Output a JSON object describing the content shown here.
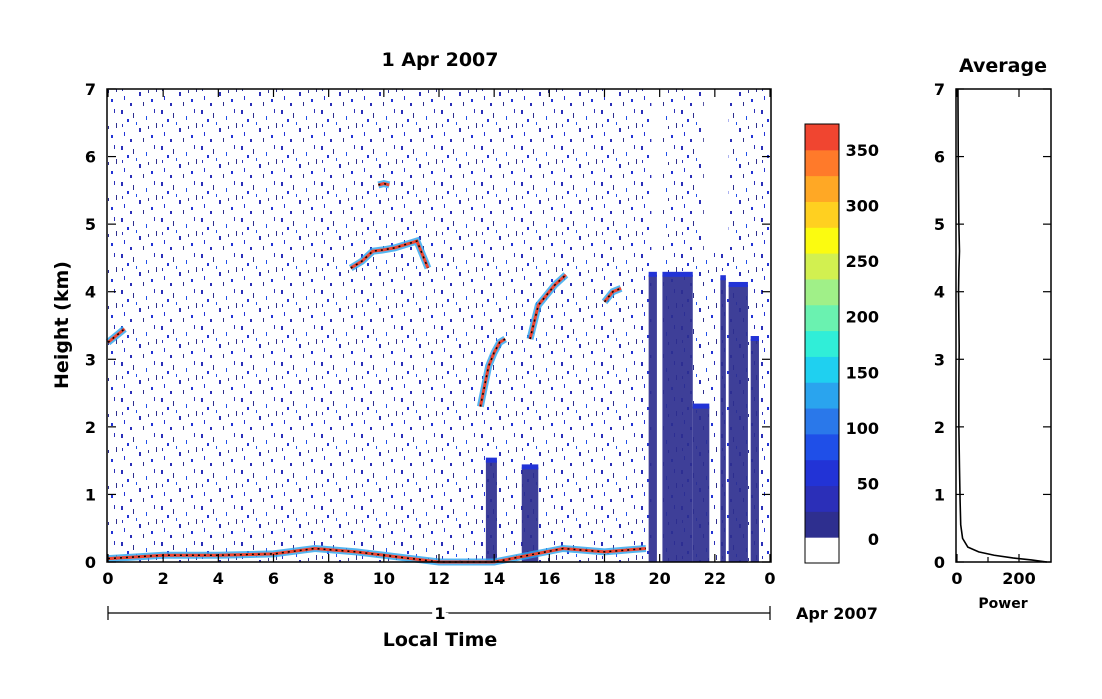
{
  "chart_data": [
    {
      "type": "heatmap",
      "title": "1 Apr 2007",
      "xlabel": "Local Time",
      "ylabel": "Height (km)",
      "xlim": [
        0,
        24
      ],
      "ylim": [
        0,
        7
      ],
      "x_ticks": [
        "0",
        "2",
        "4",
        "6",
        "8",
        "10",
        "12",
        "14",
        "16",
        "18",
        "20",
        "22",
        "0"
      ],
      "y_ticks": [
        "0",
        "1",
        "2",
        "3",
        "4",
        "5",
        "6",
        "7"
      ],
      "date_axis": {
        "day_label": "1",
        "month_label": "Apr 2007"
      },
      "colorbar": {
        "ticks": [
          "0",
          "50",
          "100",
          "150",
          "200",
          "250",
          "300",
          "350"
        ],
        "range": [
          0,
          380
        ],
        "colors": [
          "#ffffff",
          "#2e2f8f",
          "#2b2fb8",
          "#2233d6",
          "#1f4fe8",
          "#2a78ea",
          "#2aa4ee",
          "#1fd0f0",
          "#30eed8",
          "#6af2b0",
          "#a0f088",
          "#d2f050",
          "#fbfb10",
          "#ffd020",
          "#ffa825",
          "#ff7a2a",
          "#f04530"
        ]
      },
      "features": [
        {
          "name": "surface layer",
          "t": [
            0,
            2,
            4,
            6,
            7.5,
            9,
            12,
            14,
            16.5,
            18,
            19.5
          ],
          "h": [
            0.05,
            0.1,
            0.1,
            0.12,
            0.2,
            0.15,
            0,
            0,
            0.2,
            0.15,
            0.2
          ]
        },
        {
          "name": "cloud layer 10-12",
          "t": [
            8.8,
            9.2,
            9.6,
            10.0,
            10.4,
            10.8,
            11.2,
            11.6
          ],
          "h": [
            4.35,
            4.45,
            4.6,
            4.62,
            4.65,
            4.7,
            4.75,
            4.35
          ]
        },
        {
          "name": "cloud top 10",
          "t": [
            9.8,
            10.0,
            10.2
          ],
          "h": [
            5.58,
            5.6,
            5.58
          ]
        },
        {
          "name": "rising layer 14",
          "t": [
            13.5,
            13.8,
            14.0,
            14.2,
            14.4
          ],
          "h": [
            2.3,
            2.9,
            3.1,
            3.25,
            3.3
          ]
        },
        {
          "name": "rising layer 16",
          "t": [
            15.3,
            15.6,
            15.9,
            16.2,
            16.6
          ],
          "h": [
            3.3,
            3.8,
            3.95,
            4.1,
            4.25
          ]
        },
        {
          "name": "layer 18",
          "t": [
            18.0,
            18.3,
            18.6
          ],
          "h": [
            3.85,
            4.0,
            4.05
          ]
        },
        {
          "name": "early layer",
          "t": [
            0,
            0.3,
            0.6
          ],
          "h": [
            3.25,
            3.35,
            3.45
          ]
        }
      ],
      "columns": [
        {
          "t0": 19.6,
          "t1": 19.9,
          "h1": 4.25
        },
        {
          "t0": 20.1,
          "t1": 21.2,
          "h1": 4.25
        },
        {
          "t0": 21.2,
          "t1": 21.8,
          "h1": 2.3
        },
        {
          "t0": 22.2,
          "t1": 22.4,
          "h1": 4.2
        },
        {
          "t0": 22.5,
          "t1": 23.2,
          "h1": 4.1
        },
        {
          "t0": 23.3,
          "t1": 23.6,
          "h1": 3.3
        },
        {
          "t0": 13.7,
          "t1": 14.1,
          "h1": 1.5
        },
        {
          "t0": 15.0,
          "t1": 15.6,
          "h1": 1.4
        }
      ],
      "gaps": [
        {
          "t0": 19.7,
          "t1": 20.1,
          "h0": 0,
          "h1": 7
        },
        {
          "t0": 21.6,
          "t1": 22.5,
          "h0": 4.6,
          "h1": 7
        }
      ]
    },
    {
      "type": "line",
      "title": "Average",
      "xlabel": "Power",
      "xlim": [
        0,
        300
      ],
      "ylim": [
        0,
        7
      ],
      "x_ticks": [
        "0",
        "200"
      ],
      "y_ticks": [
        "0",
        "1",
        "2",
        "3",
        "4",
        "5",
        "6",
        "7"
      ],
      "series": [
        {
          "x": [
            290,
            240,
            180,
            120,
            70,
            35,
            18,
            12,
            10,
            8,
            6,
            6,
            7,
            6,
            5,
            6,
            8,
            6,
            5,
            4,
            3
          ],
          "y": [
            0.0,
            0.03,
            0.06,
            0.1,
            0.15,
            0.22,
            0.35,
            0.55,
            0.9,
            1.4,
            2.0,
            2.6,
            3.2,
            3.6,
            4.0,
            4.3,
            4.6,
            5.0,
            5.5,
            6.0,
            7.0
          ]
        }
      ]
    }
  ]
}
